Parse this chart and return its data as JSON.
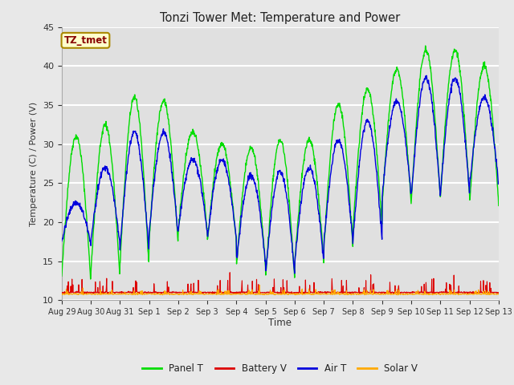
{
  "title": "Tonzi Tower Met: Temperature and Power",
  "xlabel": "Time",
  "ylabel": "Temperature (C) / Power (V)",
  "ylim": [
    10,
    45
  ],
  "fig_bg_color": "#e8e8e8",
  "plot_bg_color": "#e0e0e0",
  "annotation_text": "TZ_tmet",
  "annotation_bg": "#ffffcc",
  "annotation_border": "#aa8800",
  "annotation_fg": "#880000",
  "xtick_labels": [
    "Aug 29",
    "Aug 30",
    "Aug 31",
    "Sep 1",
    "Sep 2",
    "Sep 3",
    "Sep 4",
    "Sep 5",
    "Sep 6",
    "Sep 7",
    "Sep 8",
    "Sep 9",
    "Sep 10",
    "Sep 11",
    "Sep 12",
    "Sep 13"
  ],
  "ytick_vals": [
    10,
    15,
    20,
    25,
    30,
    35,
    40,
    45
  ],
  "legend_entries": [
    "Panel T",
    "Battery V",
    "Air T",
    "Solar V"
  ],
  "legend_colors": [
    "#00dd00",
    "#dd0000",
    "#0000dd",
    "#ffaa00"
  ],
  "line_colors": {
    "panel_t": "#00dd00",
    "battery_v": "#dd0000",
    "air_t": "#0000dd",
    "solar_v": "#ffaa00"
  },
  "n_days": 15,
  "samples_per_day": 96,
  "panel_t_min": [
    13.0,
    13.5,
    14.5,
    17.5,
    19.0,
    17.5,
    14.5,
    13.0,
    15.0,
    17.0,
    19.5,
    22.5,
    23.0,
    23.5,
    22.5
  ],
  "panel_t_max": [
    31.0,
    32.5,
    36.0,
    35.5,
    31.5,
    30.0,
    29.5,
    30.5,
    30.5,
    35.0,
    37.0,
    39.5,
    42.0,
    42.0,
    40.0
  ],
  "air_t_min": [
    17.5,
    17.5,
    16.5,
    18.5,
    19.0,
    18.0,
    15.0,
    13.5,
    15.0,
    17.5,
    18.0,
    23.5,
    23.5,
    24.0,
    25.0
  ],
  "air_t_max": [
    22.5,
    27.0,
    31.5,
    31.5,
    28.0,
    28.0,
    26.0,
    26.5,
    27.0,
    30.5,
    33.0,
    35.5,
    38.5,
    38.5,
    36.0
  ],
  "batt_base": 11.0,
  "batt_spike": 1.8,
  "solar_base": 10.8,
  "solar_spike": 0.6
}
